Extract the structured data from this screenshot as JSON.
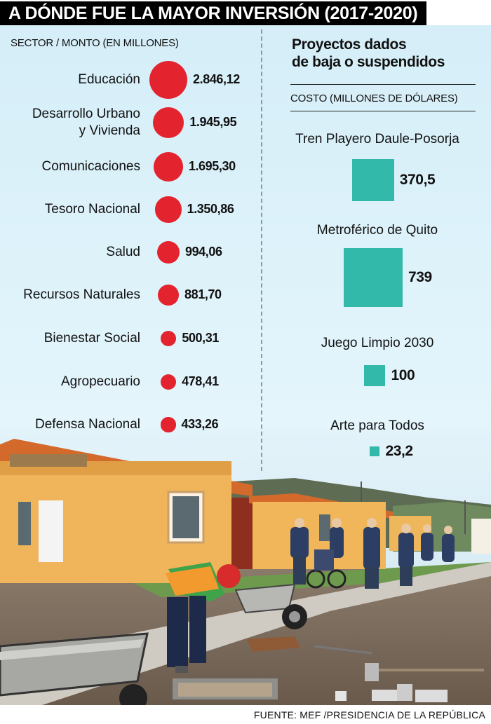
{
  "header": {
    "title": "A DÓNDE FUE LA MAYOR INVERSIÓN (2017-2020)"
  },
  "colors": {
    "bubble": "#e3232e",
    "square": "#33b9aa",
    "panel": "#d9f0f9"
  },
  "chart_data": [
    {
      "type": "bubble",
      "title": "SECTOR / MONTO (EN MILLONES)",
      "categories": [
        "Educación",
        "Desarrollo Urbano y Vivienda",
        "Comunicaciones",
        "Tesoro Nacional",
        "Salud",
        "Recursos Naturales",
        "Bienestar Social",
        "Agropecuario",
        "Defensa Nacional"
      ],
      "category_lines": [
        [
          "Educación"
        ],
        [
          "Desarrollo Urbano",
          "y Vivienda"
        ],
        [
          "Comunicaciones"
        ],
        [
          "Tesoro Nacional"
        ],
        [
          "Salud"
        ],
        [
          "Recursos Naturales"
        ],
        [
          "Bienestar Social"
        ],
        [
          "Agropecuario"
        ],
        [
          "Defensa Nacional"
        ]
      ],
      "values": [
        2846.12,
        1945.95,
        1695.3,
        1350.86,
        994.06,
        881.7,
        500.31,
        478.41,
        433.26
      ],
      "value_labels": [
        "2.846,12",
        "1.945,95",
        "1.695,30",
        "1.350,86",
        "994,06",
        "881,70",
        "500,31",
        "478,41",
        "433,26"
      ]
    },
    {
      "type": "area-square",
      "title": "Proyectos dados de baja o suspendidos",
      "title_lines": [
        "Proyectos dados",
        "de baja o suspendidos"
      ],
      "subtitle": "COSTO (MILLONES DE DÓLARES)",
      "categories": [
        "Tren Playero Daule-Posorja",
        "Metroférico de Quito",
        "Juego Limpio 2030",
        "Arte para Todos"
      ],
      "values": [
        370.5,
        739,
        100,
        23.2
      ],
      "value_labels": [
        "370,5",
        "739",
        "100",
        "23,2"
      ]
    }
  ],
  "footer": {
    "source": "FUENTE: MEF /PRESIDENCIA DE LA REPÚBLICA"
  }
}
